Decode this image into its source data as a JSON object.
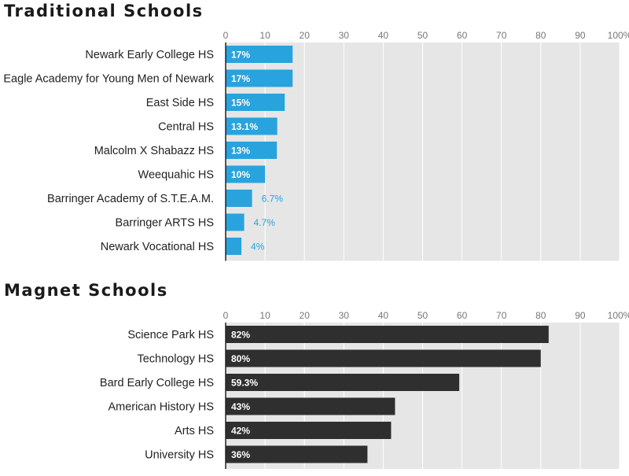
{
  "chart_data": [
    {
      "type": "bar",
      "orientation": "horizontal",
      "title": "Traditional Schools",
      "categories": [
        "Newark Early College HS",
        "Eagle Academy for Young Men of Newark",
        "East Side HS",
        "Central HS",
        "Malcolm X Shabazz HS",
        "Weequahic HS",
        "Barringer Academy of S.T.E.A.M.",
        "Barringer ARTS HS",
        "Newark Vocational HS"
      ],
      "values": [
        17,
        17,
        15,
        13.1,
        13,
        10,
        6.7,
        4.7,
        4
      ],
      "value_labels": [
        "17%",
        "17%",
        "15%",
        "13.1%",
        "13%",
        "10%",
        "6.7%",
        "4.7%",
        "4%"
      ],
      "xlim": [
        0,
        100
      ],
      "ticks": [
        "0",
        "10",
        "20",
        "30",
        "40",
        "50",
        "60",
        "70",
        "80",
        "90",
        "100%"
      ],
      "color": "#29a3dd"
    },
    {
      "type": "bar",
      "orientation": "horizontal",
      "title": "Magnet Schools",
      "categories": [
        "Science Park HS",
        "Technology HS",
        "Bard Early College HS",
        "American History HS",
        "Arts HS",
        "University HS"
      ],
      "values": [
        82,
        80,
        59.3,
        43,
        42,
        36
      ],
      "value_labels": [
        "82%",
        "80%",
        "59.3%",
        "43%",
        "42%",
        "36%"
      ],
      "xlim": [
        0,
        100
      ],
      "ticks": [
        "0",
        "10",
        "20",
        "30",
        "40",
        "50",
        "60",
        "70",
        "80",
        "90",
        "100%"
      ],
      "color": "#2f2f2f"
    }
  ]
}
